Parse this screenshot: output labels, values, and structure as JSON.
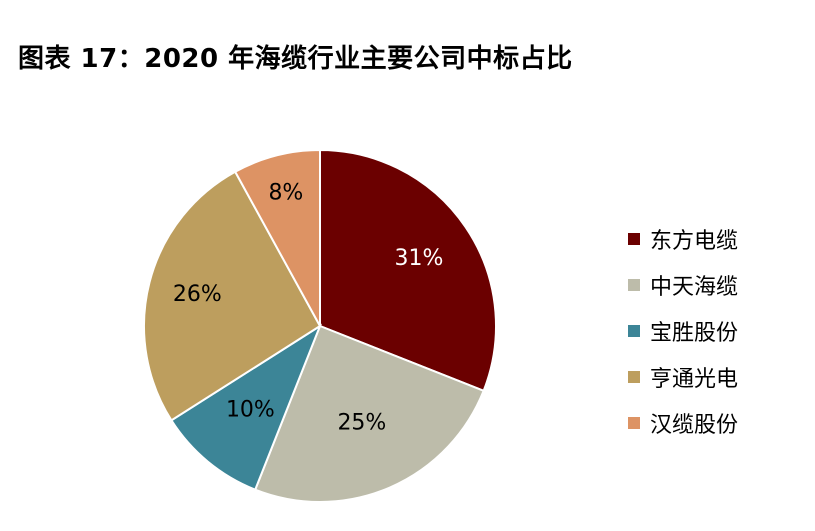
{
  "title": "图表 17：2020 年海缆行业主要公司中标占比",
  "chart_data": {
    "type": "pie",
    "categories": [
      "东方电缆",
      "中天海缆",
      "宝胜股份",
      "亨通光电",
      "汉缆股份"
    ],
    "values": [
      31,
      25,
      10,
      26,
      8
    ],
    "labels": [
      "31%",
      "25%",
      "10%",
      "26%",
      "8%"
    ],
    "colors": [
      "#6B0000",
      "#BDBCAA",
      "#3C8597",
      "#BD9E5E",
      "#DD9364"
    ],
    "legend_position": "right",
    "start_angle": "12 o'clock, clockwise"
  }
}
